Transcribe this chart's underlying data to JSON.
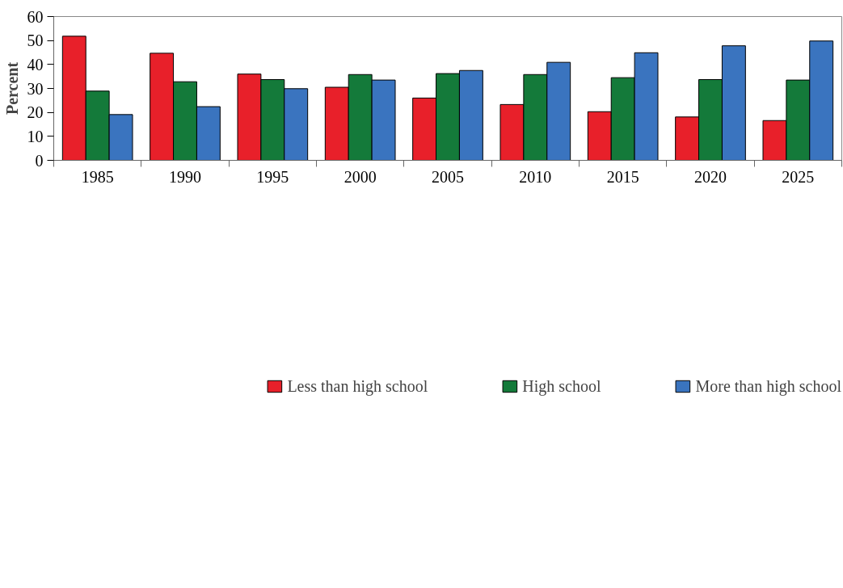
{
  "chart_data": {
    "type": "bar",
    "ylabel": "Percent",
    "categories": [
      "1985",
      "1990",
      "1995",
      "2000",
      "2005",
      "2010",
      "2015",
      "2020",
      "2025"
    ],
    "series": [
      {
        "name": "Less than high school",
        "color": "#e8202a",
        "values": [
          51.8,
          44.7,
          36.0,
          30.5,
          26.0,
          23.3,
          20.3,
          18.1,
          16.6
        ]
      },
      {
        "name": "High school",
        "color": "#147a3a",
        "values": [
          28.9,
          32.8,
          33.7,
          35.8,
          36.2,
          35.8,
          34.5,
          33.7,
          33.5
        ]
      },
      {
        "name": "More than high school",
        "color": "#3a74bf",
        "values": [
          19.1,
          22.4,
          29.9,
          33.5,
          37.5,
          40.9,
          44.9,
          47.8,
          49.8
        ]
      }
    ],
    "ylim": [
      0,
      60
    ],
    "yticks": [
      0,
      10,
      20,
      30,
      40,
      50,
      60
    ],
    "grid": false,
    "legend": "bottom"
  }
}
